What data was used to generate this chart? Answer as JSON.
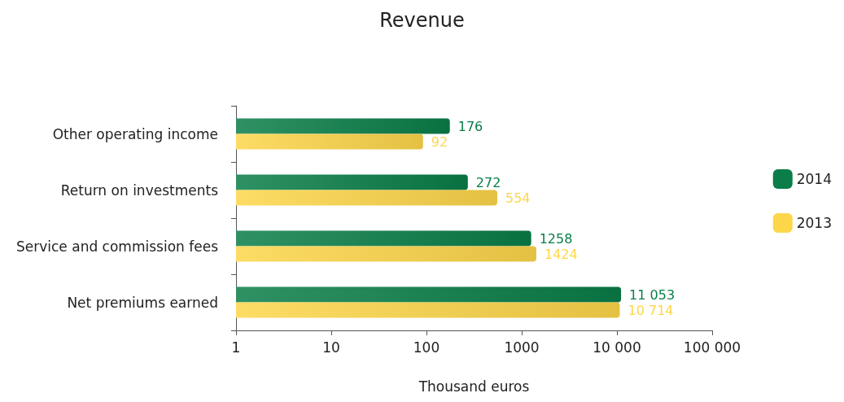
{
  "chart_data": {
    "type": "bar",
    "orientation": "horizontal",
    "title": "Revenue",
    "xlabel": "Thousand euros",
    "categories": [
      "Other operating income",
      "Return on investments",
      "Service and commission fees",
      "Net premiums earned"
    ],
    "series": [
      {
        "name": "2014",
        "color": "#0a7d48",
        "values": [
          176,
          272,
          1258,
          11053
        ],
        "value_labels": [
          "176",
          "272",
          "1258",
          "11 053"
        ]
      },
      {
        "name": "2013",
        "color": "#fdd64a",
        "values": [
          92,
          554,
          1424,
          10714
        ],
        "value_labels": [
          "92",
          "554",
          "1424",
          "10 714"
        ]
      }
    ],
    "log": "x",
    "xlim": [
      1,
      100000
    ],
    "xticks": [
      1,
      10,
      100,
      1000,
      {
        "value": 10000,
        "label": "10 000"
      },
      {
        "value": 100000,
        "label": "100 000"
      }
    ],
    "grid": false,
    "legend": "right"
  }
}
